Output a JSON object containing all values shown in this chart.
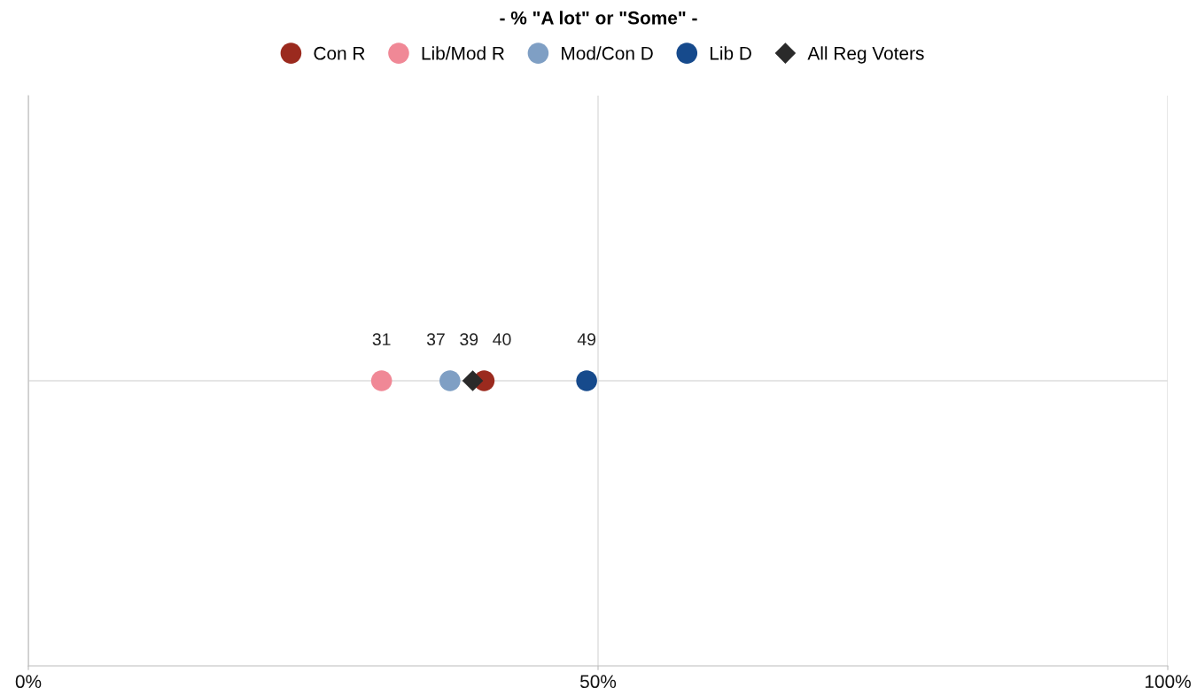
{
  "chart_data": {
    "type": "scatter",
    "title": "- % \"A lot\" or \"Some\" -",
    "orientation": "horizontal",
    "categories": [
      null
    ],
    "series": [
      {
        "name": "Con R",
        "color": "#9b2a1e",
        "values": [
          40
        ],
        "marker": "circle"
      },
      {
        "name": "Lib/Mod R",
        "color": "#f08896",
        "values": [
          31
        ],
        "marker": "circle"
      },
      {
        "name": "Mod/Con D",
        "color": "#7f9fc4",
        "values": [
          37
        ],
        "marker": "circle"
      },
      {
        "name": "Lib D",
        "color": "#164a8c",
        "values": [
          49
        ],
        "marker": "circle"
      },
      {
        "name": "All Reg Voters",
        "color": "#2a2a2a",
        "values": [
          39
        ],
        "marker": "diamond"
      }
    ],
    "xlim": [
      0,
      100
    ],
    "xticks": [
      {
        "value": 0,
        "label": "0%"
      },
      {
        "value": 50,
        "label": "50%"
      },
      {
        "value": 100,
        "label": "100%"
      }
    ],
    "grid": true,
    "legend": "top",
    "data_labels": true
  }
}
